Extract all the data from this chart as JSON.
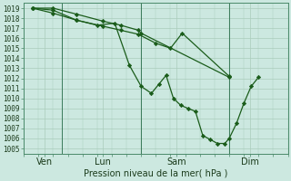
{
  "title": "Pression niveau de la mer( hPa )",
  "background_color": "#cce8e0",
  "grid_color": "#aaccbb",
  "line_color": "#1a5c1a",
  "marker_color": "#1a5c1a",
  "ylim_min": 1004.5,
  "ylim_max": 1019.5,
  "xlim_min": 0,
  "xlim_max": 9.0,
  "yticks": [
    1005,
    1006,
    1007,
    1008,
    1009,
    1010,
    1011,
    1012,
    1013,
    1014,
    1015,
    1016,
    1017,
    1018,
    1019
  ],
  "xlabel_fontsize": 7,
  "ytick_fontsize": 5.5,
  "xtick_fontsize": 7,
  "xtick_labels": [
    "Ven",
    "Lun",
    "Sam",
    "Dim"
  ],
  "xtick_positions": [
    0.7,
    2.7,
    5.2,
    7.7
  ],
  "vlines": [
    1.3,
    4.0,
    7.0
  ],
  "series1_x": [
    0.3,
    1.0,
    1.8,
    2.7,
    3.3,
    3.9,
    4.0,
    7.0
  ],
  "series1_y": [
    1019.0,
    1019.0,
    1018.4,
    1017.7,
    1017.3,
    1016.8,
    1016.5,
    1012.1
  ],
  "series2_x": [
    0.3,
    1.0,
    1.8,
    2.7,
    3.3,
    3.9,
    4.5,
    5.0,
    5.4,
    7.0
  ],
  "series2_y": [
    1019.0,
    1018.5,
    1017.8,
    1017.2,
    1016.8,
    1016.4,
    1015.5,
    1015.0,
    1016.5,
    1012.2
  ],
  "series3_x": [
    0.3,
    1.0,
    1.8,
    2.5,
    3.1,
    3.6,
    4.0,
    4.35,
    4.6,
    4.85,
    5.1,
    5.35,
    5.6,
    5.85,
    6.1,
    6.35,
    6.6,
    6.85,
    7.0,
    7.25,
    7.5,
    7.75,
    8.0
  ],
  "series3_y": [
    1019.0,
    1018.8,
    1017.8,
    1017.3,
    1017.5,
    1013.3,
    1011.2,
    1010.5,
    1011.4,
    1012.3,
    1010.0,
    1009.3,
    1009.0,
    1008.7,
    1006.3,
    1005.9,
    1005.5,
    1005.5,
    1006.0,
    1007.5,
    1009.5,
    1011.2,
    1012.1
  ]
}
